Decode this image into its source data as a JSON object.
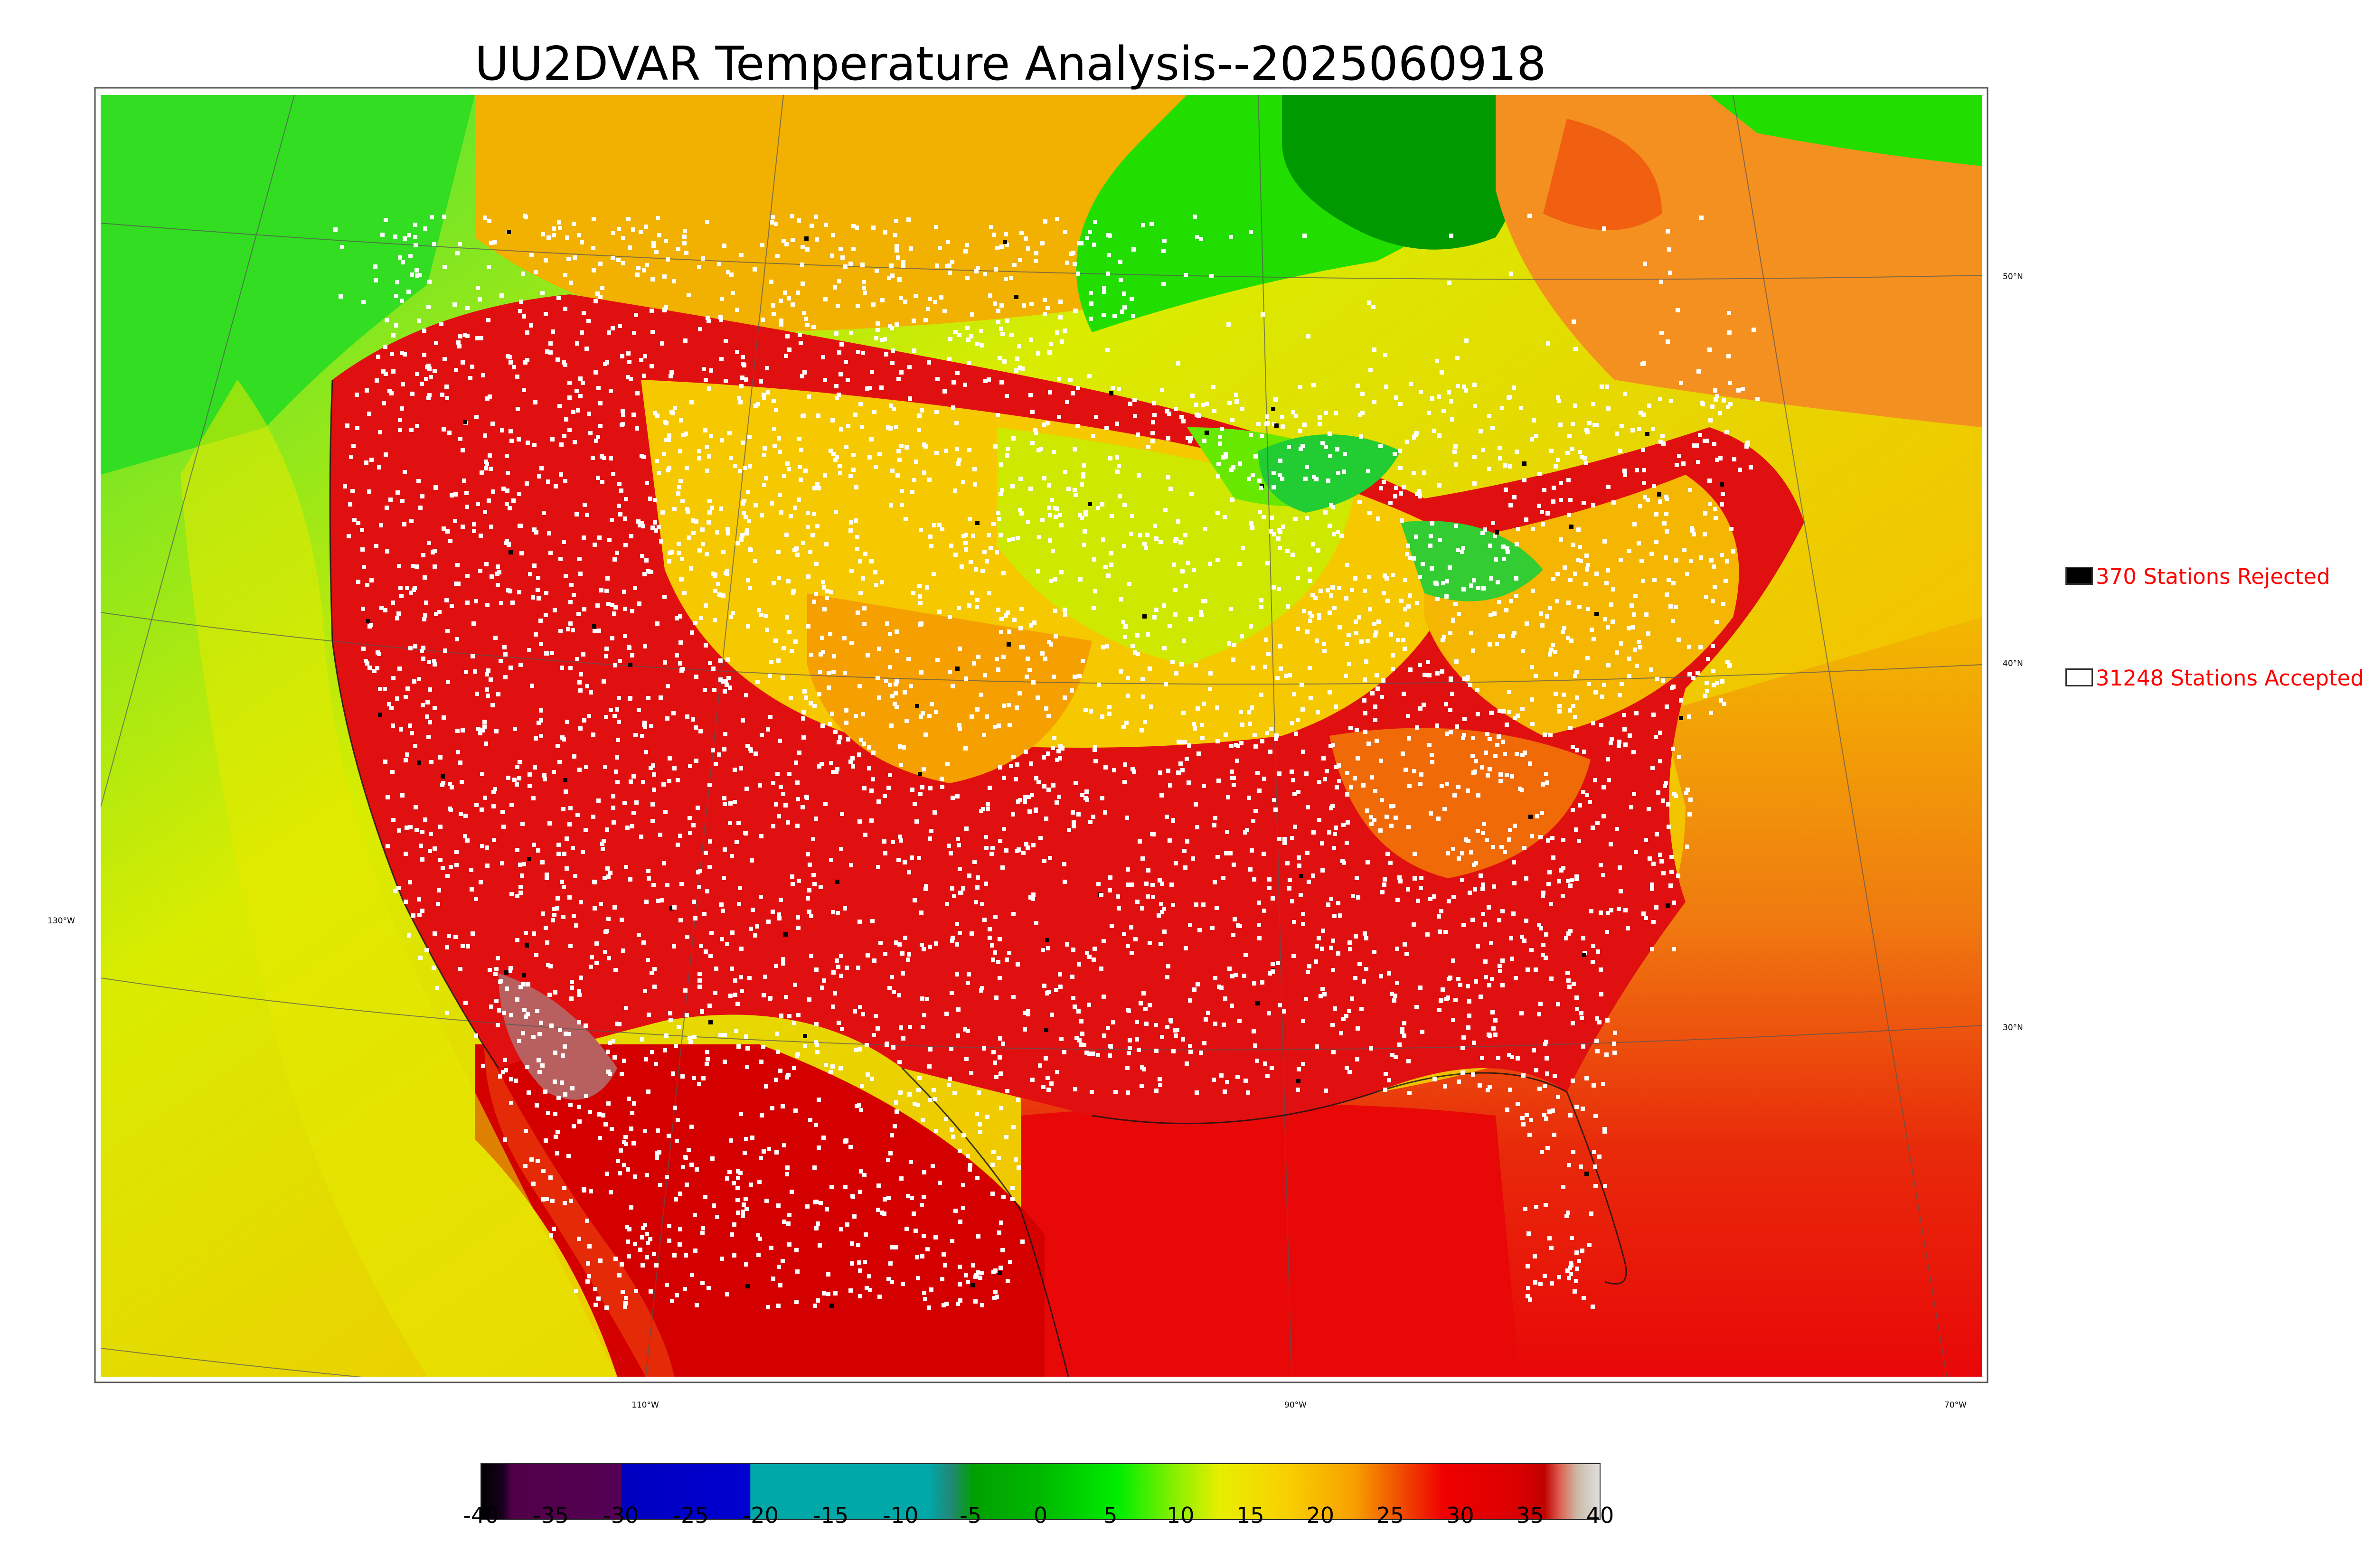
{
  "title": "UU2DVAR Temperature Analysis--2025060918",
  "legend": [
    {
      "label": "370 Stations Rejected",
      "swatch_color": "#000000"
    },
    {
      "label": "31248 Stations Accepted",
      "swatch_color": "#ffffff"
    }
  ],
  "longitude_labels": [
    "130°W",
    "110°W",
    "90°W",
    "70°W"
  ],
  "latitude_labels": [
    "50°N",
    "40°N",
    "30°N"
  ],
  "colorbar": {
    "ticks": [
      "-40",
      "-35",
      "-30",
      "-25",
      "-20",
      "-15",
      "-10",
      "-5",
      "0",
      "5",
      "10",
      "15",
      "20",
      "25",
      "30",
      "35",
      "40"
    ],
    "range": [
      -40,
      40
    ]
  },
  "colors": {
    "warm": "#e00000",
    "hot": "#cc0000",
    "orange": "#f5a623",
    "yellow": "#e4e800",
    "green": "#22dd00",
    "deep_green": "#009900",
    "station_accepted": "#ffffff",
    "station_rejected": "#000000"
  }
}
